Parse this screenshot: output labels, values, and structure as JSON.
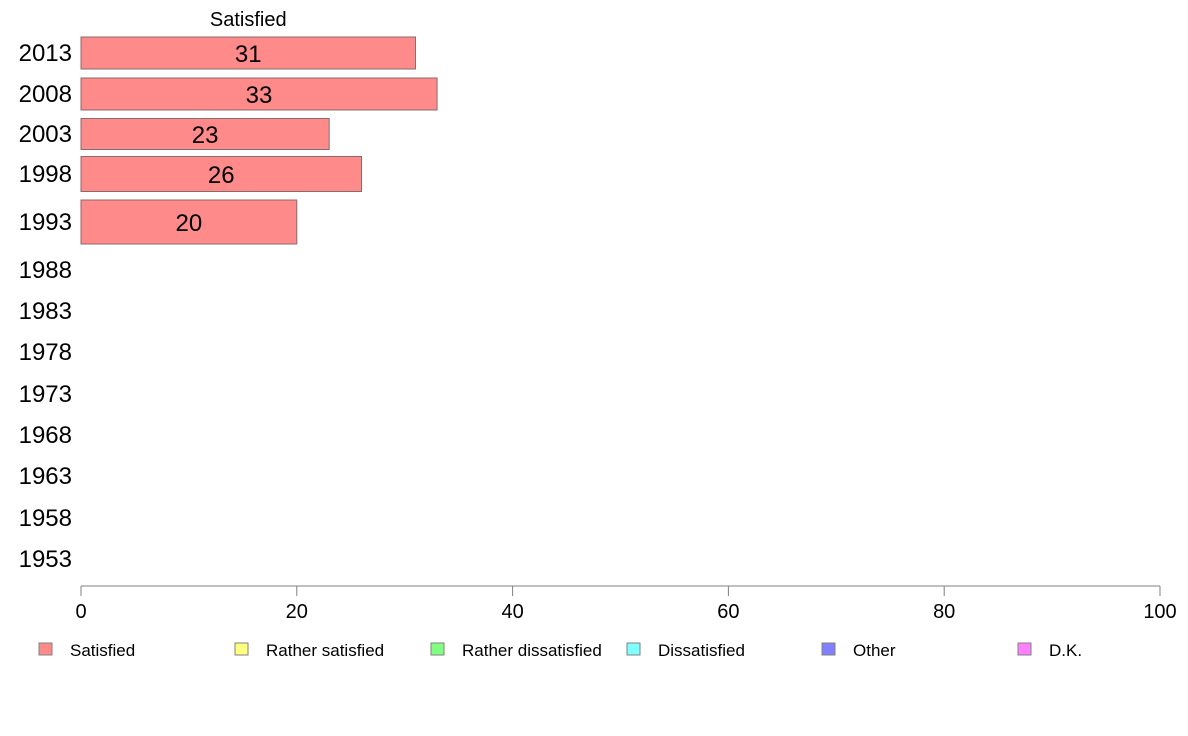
{
  "chart_data": {
    "type": "bar",
    "orientation": "horizontal",
    "stacked": true,
    "categories": [
      "2013",
      "2008",
      "2003",
      "1998",
      "1993",
      "1988",
      "1983",
      "1978",
      "1973",
      "1968",
      "1963",
      "1958",
      "1953"
    ],
    "series": [
      {
        "name": "Satisfied",
        "color": "#ff8a8a",
        "values": [
          31,
          33,
          23,
          26,
          20,
          null,
          null,
          null,
          null,
          null,
          null,
          null,
          null
        ]
      },
      {
        "name": "Rather satisfied",
        "color": "#ffff80",
        "values": [
          null,
          null,
          null,
          null,
          null,
          null,
          null,
          null,
          null,
          null,
          null,
          null,
          null
        ]
      },
      {
        "name": "Rather dissatisfied",
        "color": "#80ff80",
        "values": [
          null,
          null,
          null,
          null,
          null,
          null,
          null,
          null,
          null,
          null,
          null,
          null,
          null
        ]
      },
      {
        "name": "Dissatisfied",
        "color": "#80ffff",
        "values": [
          null,
          null,
          null,
          null,
          null,
          null,
          null,
          null,
          null,
          null,
          null,
          null,
          null
        ]
      },
      {
        "name": "Other",
        "color": "#8080ff",
        "values": [
          null,
          null,
          null,
          null,
          null,
          null,
          null,
          null,
          null,
          null,
          null,
          null,
          null
        ]
      },
      {
        "name": "D.K.",
        "color": "#ff80ff",
        "values": [
          null,
          null,
          null,
          null,
          null,
          null,
          null,
          null,
          null,
          null,
          null,
          null,
          null
        ]
      }
    ],
    "series_header": "Satisfied",
    "xlim": [
      0,
      100
    ],
    "xticks": [
      0,
      20,
      40,
      60,
      80,
      100
    ],
    "grid": false,
    "legend_position": "bottom"
  }
}
